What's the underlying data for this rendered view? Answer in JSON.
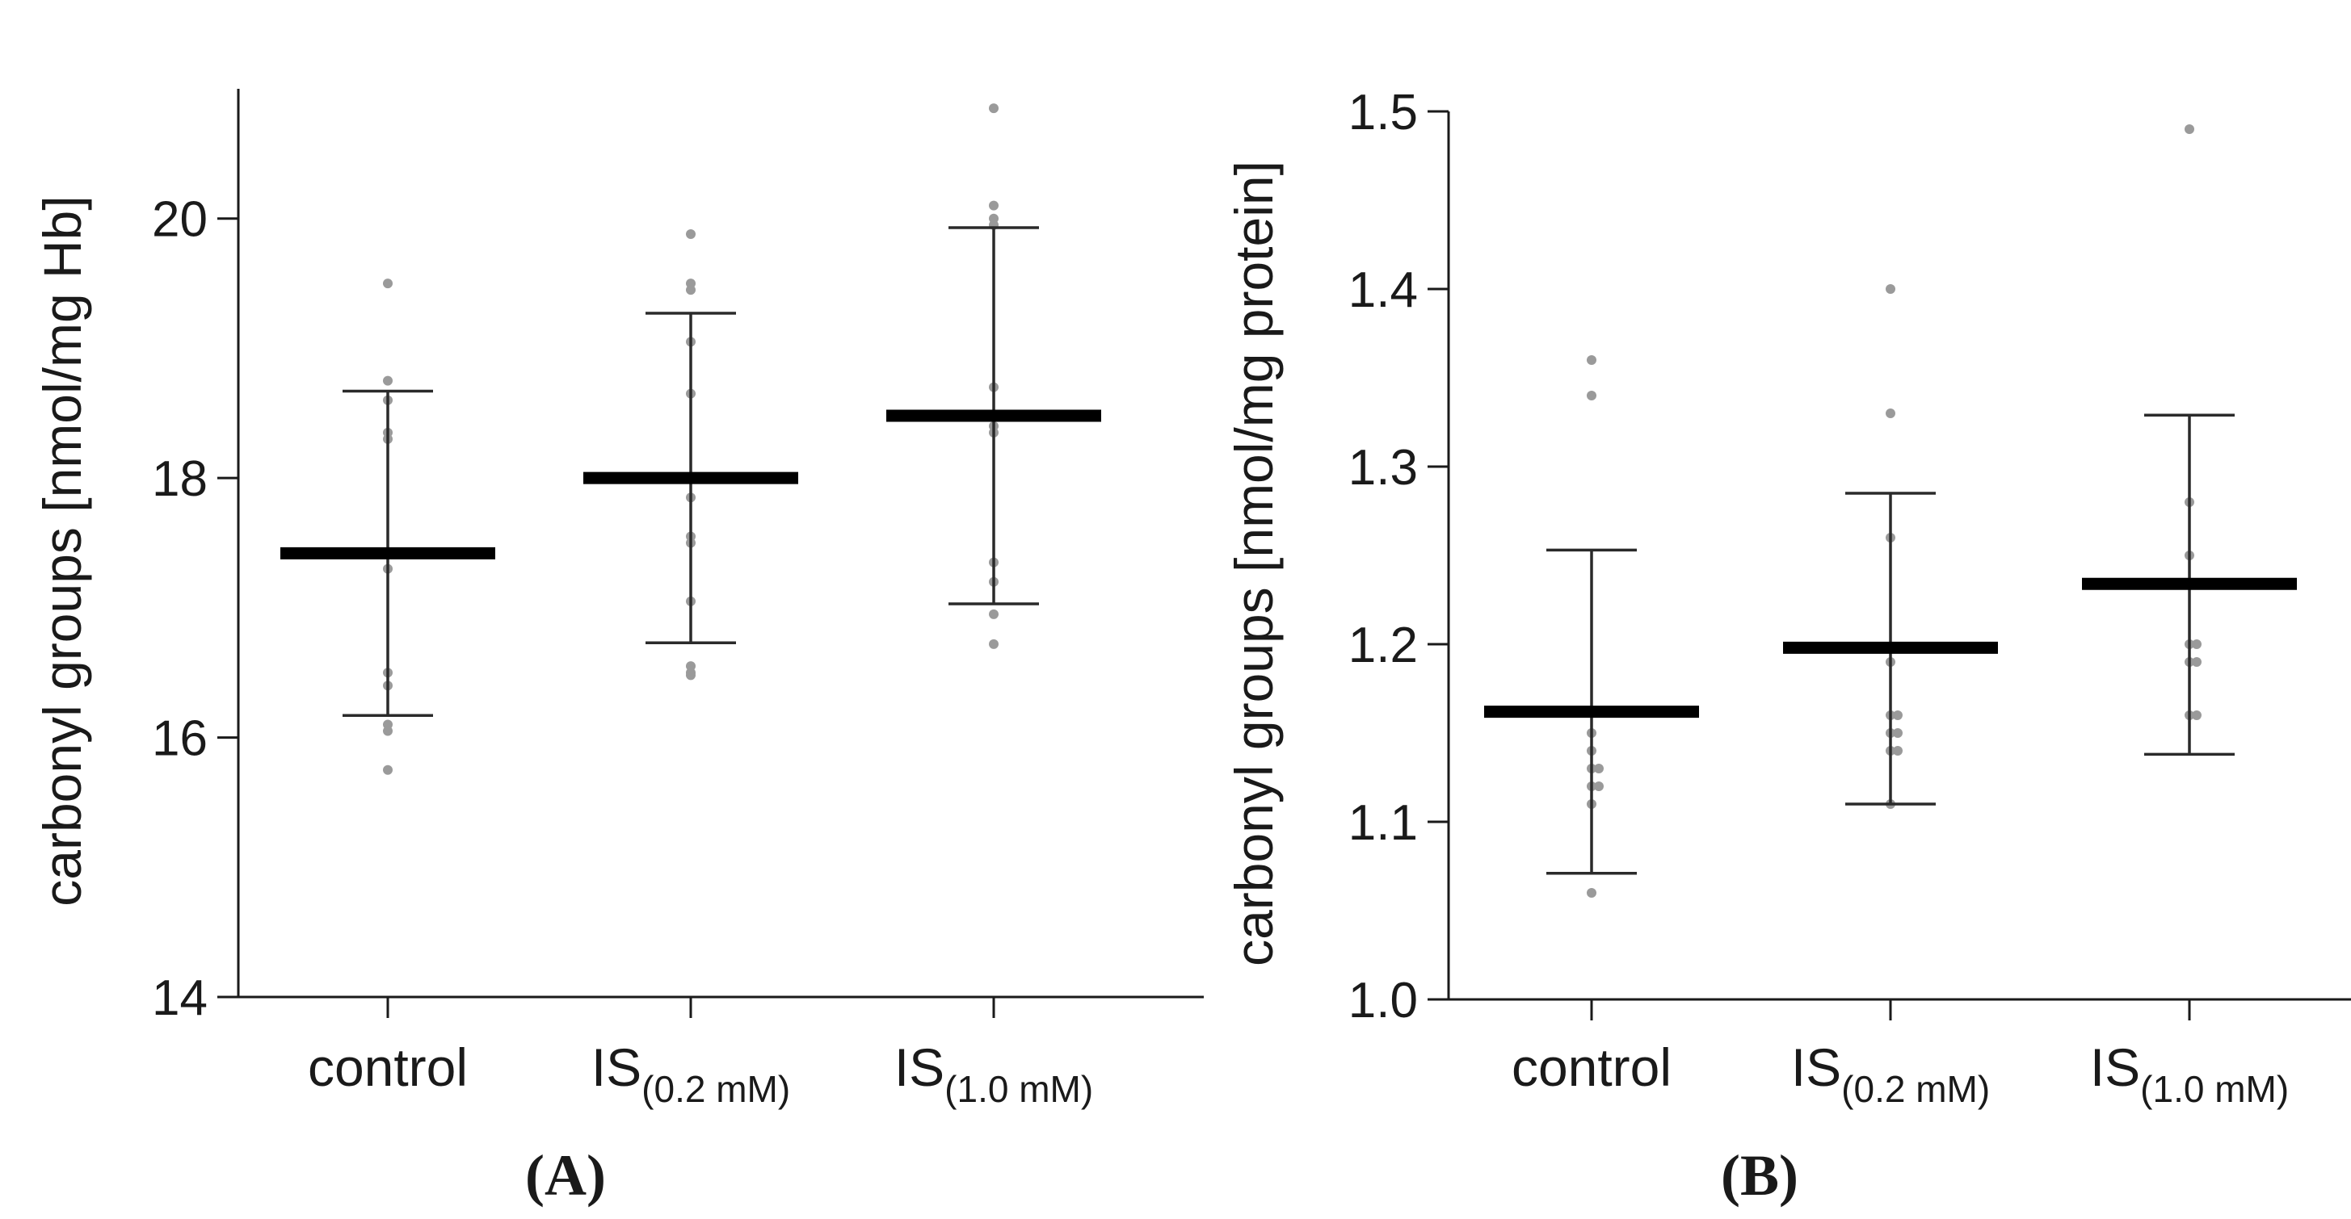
{
  "chart_data": [
    {
      "type": "scatter",
      "panel": "(A)",
      "ylabel": "carbonyl groups [nmol/mg Hb]",
      "ylim": [
        14,
        21
      ],
      "yticks": [
        14,
        16,
        18,
        20
      ],
      "categories": [
        {
          "main": "control",
          "sub": ""
        },
        {
          "main": "IS",
          "sub": "(0.2 mM)"
        },
        {
          "main": "IS",
          "sub": "(1.0 mM)"
        }
      ],
      "groups": [
        {
          "mean": 17.42,
          "err_low": 16.17,
          "err_high": 18.67,
          "points": [
            19.5,
            18.75,
            18.6,
            18.35,
            18.3,
            17.3,
            16.5,
            16.4,
            16.1,
            16.05,
            15.75
          ]
        },
        {
          "mean": 18.0,
          "err_low": 16.73,
          "err_high": 19.27,
          "points": [
            19.88,
            19.5,
            19.45,
            19.05,
            18.65,
            17.85,
            17.55,
            17.5,
            17.05,
            16.55,
            16.5,
            16.48
          ]
        },
        {
          "mean": 18.48,
          "err_low": 17.03,
          "err_high": 19.93,
          "points": [
            20.85,
            20.1,
            20.0,
            19.95,
            18.7,
            18.4,
            18.35,
            17.35,
            17.2,
            16.95,
            16.72
          ]
        }
      ]
    },
    {
      "type": "scatter",
      "panel": "(B)",
      "ylabel": "carbonyl groups [nmol/mg protein]",
      "ylim": [
        1.0,
        1.5
      ],
      "yticks": [
        1.0,
        1.1,
        1.2,
        1.3,
        1.4,
        1.5
      ],
      "categories": [
        {
          "main": "control",
          "sub": ""
        },
        {
          "main": "IS",
          "sub": "(0.2 mM)"
        },
        {
          "main": "IS",
          "sub": "(1.0 mM)"
        }
      ],
      "groups": [
        {
          "mean": 1.162,
          "err_low": 1.071,
          "err_high": 1.253,
          "points": [
            1.36,
            1.34,
            1.15,
            1.14,
            1.13,
            1.13,
            1.12,
            1.12,
            1.11,
            1.06
          ]
        },
        {
          "mean": 1.198,
          "err_low": 1.11,
          "err_high": 1.285,
          "points": [
            1.4,
            1.33,
            1.26,
            1.19,
            1.16,
            1.16,
            1.15,
            1.15,
            1.14,
            1.14,
            1.11
          ]
        },
        {
          "mean": 1.234,
          "err_low": 1.138,
          "err_high": 1.329,
          "points": [
            1.49,
            1.28,
            1.25,
            1.2,
            1.2,
            1.19,
            1.19,
            1.16,
            1.16
          ]
        }
      ]
    }
  ]
}
